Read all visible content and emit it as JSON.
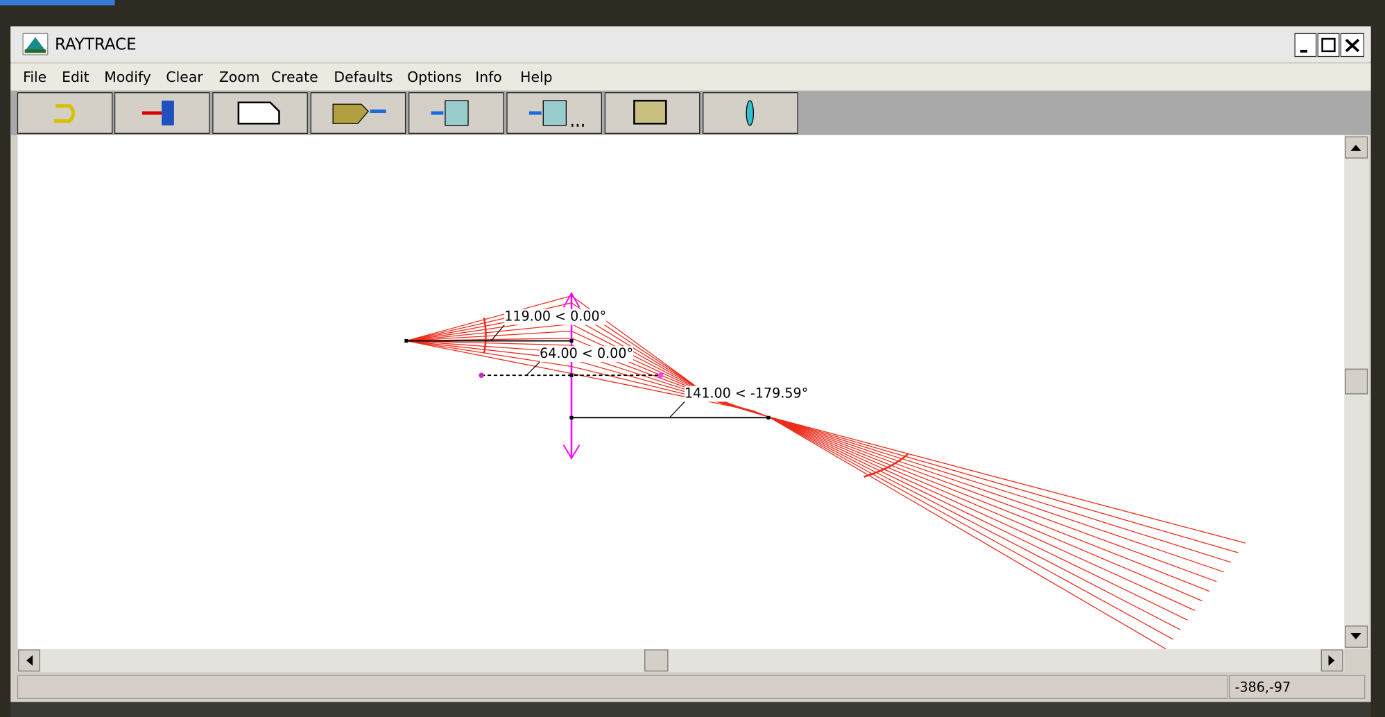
{
  "window": {
    "title": "RAYTRACE"
  },
  "menu": [
    "File",
    "Edit",
    "Modify",
    "Clear",
    "Zoom",
    "Create",
    "Defaults",
    "Options",
    "Info",
    "Help"
  ],
  "canvas": {
    "labels": [
      "119.00 <  0.00°",
      "64.00 <  0.00°",
      "141.00 < -179.59°"
    ]
  },
  "status": {
    "coords": "-386,-97"
  }
}
